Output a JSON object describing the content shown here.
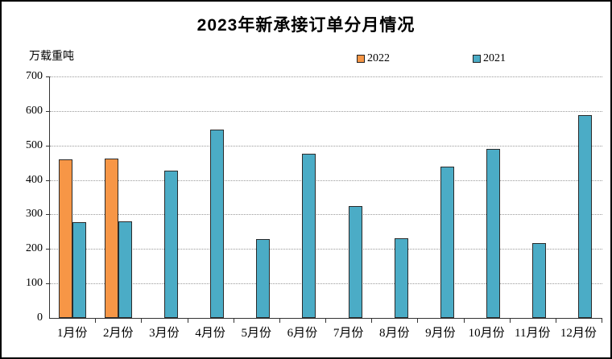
{
  "title": "2023年新承接订单分月情况",
  "y_axis_unit": "万载重吨",
  "chart_data": {
    "type": "bar",
    "title": "2023年新承接订单分月情况",
    "xlabel": "",
    "ylabel": "万载重吨",
    "ylim": [
      0,
      700
    ],
    "y_ticks": [
      0,
      100,
      200,
      300,
      400,
      500,
      600,
      700
    ],
    "grid": true,
    "gridline_style": "dotted",
    "legend_position": "top",
    "categories": [
      "1月份",
      "2月份",
      "3月份",
      "4月份",
      "5月份",
      "6月份",
      "7月份",
      "8月份",
      "9月份",
      "10月份",
      "11月份",
      "12月份"
    ],
    "series": [
      {
        "name": "2022",
        "color": "#F79646",
        "border_color": "#2B2B2B",
        "values": [
          460,
          462,
          null,
          null,
          null,
          null,
          null,
          null,
          null,
          null,
          null,
          null
        ]
      },
      {
        "name": "2021",
        "color": "#4BACC6",
        "border_color": "#2B2B2B",
        "values": [
          278,
          281,
          427,
          545,
          228,
          475,
          324,
          230,
          438,
          491,
          218,
          589
        ]
      }
    ]
  }
}
